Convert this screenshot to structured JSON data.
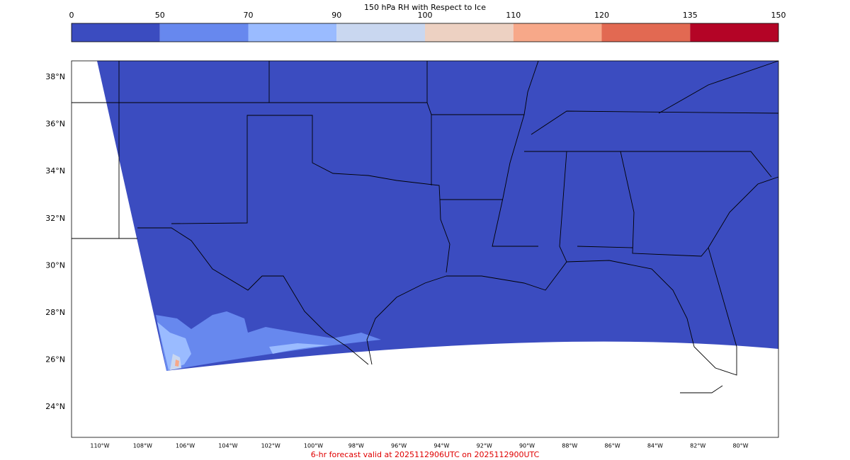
{
  "colorbar": {
    "title": "150 hPa RH with Respect to Ice",
    "bounds": [
      0,
      50,
      70,
      90,
      100,
      110,
      120,
      135,
      150
    ],
    "colors": [
      "#3b4cc0",
      "#6788ee",
      "#9abbff",
      "#c9d7f0",
      "#edd1c2",
      "#f7a889",
      "#e26952",
      "#b40426"
    ]
  },
  "map": {
    "lat_labels": [
      "38°N",
      "36°N",
      "34°N",
      "32°N",
      "30°N",
      "28°N",
      "26°N",
      "24°N"
    ],
    "lon_labels": [
      "110°W",
      "108°W",
      "106°W",
      "104°W",
      "102°W",
      "100°W",
      "98°W",
      "96°W",
      "94°W",
      "92°W",
      "90°W",
      "88°W",
      "86°W",
      "84°W",
      "82°W",
      "80°W"
    ]
  },
  "footer": "6-hr forecast valid at 2025112906UTC on 2025112900UTC"
}
